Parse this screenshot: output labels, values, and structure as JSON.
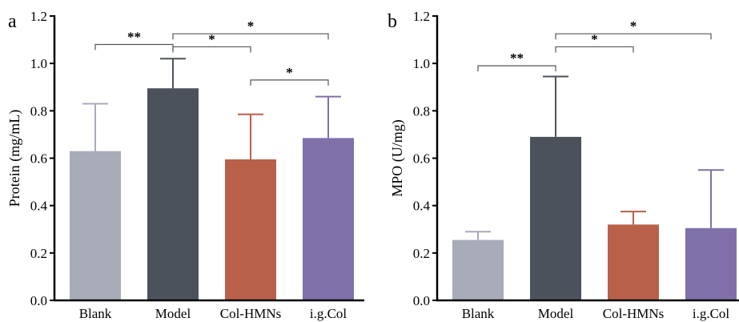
{
  "chart_data": [
    {
      "type": "bar",
      "panel_label": "a",
      "categories": [
        "Blank",
        "Model",
        "Col-HMNs",
        "i.g.Col"
      ],
      "values": [
        0.63,
        0.895,
        0.595,
        0.685
      ],
      "errors": [
        0.2,
        0.125,
        0.19,
        0.175
      ],
      "colors": [
        "#a8acb9",
        "#4c525c",
        "#b9604a",
        "#8070a9"
      ],
      "ylabel": "Protein (mg/mL)",
      "ylim": [
        0,
        1.2
      ],
      "yticks": [
        "0.0",
        "0.2",
        "0.4",
        "0.6",
        "0.8",
        "1.0",
        "1.2"
      ],
      "grid": false,
      "significance": [
        {
          "from": 0,
          "to": 1,
          "y": 1.08,
          "label": "**"
        },
        {
          "from": 1,
          "to": 2,
          "y": 1.07,
          "label": "*"
        },
        {
          "from": 1,
          "to": 3,
          "y": 1.125,
          "label": "*"
        },
        {
          "from": 2,
          "to": 3,
          "y": 0.93,
          "label": "*"
        }
      ]
    },
    {
      "type": "bar",
      "panel_label": "b",
      "categories": [
        "Blank",
        "Model",
        "Col-HMNs",
        "i.g.Col"
      ],
      "values": [
        0.255,
        0.69,
        0.32,
        0.305
      ],
      "errors": [
        0.035,
        0.255,
        0.055,
        0.245
      ],
      "colors": [
        "#a8acb9",
        "#4c525c",
        "#b9604a",
        "#8070a9"
      ],
      "ylabel": "MPO (U/mg)",
      "ylim": [
        0,
        1.2
      ],
      "yticks": [
        "0.0",
        "0.2",
        "0.4",
        "0.6",
        "0.8",
        "1.0",
        "1.2"
      ],
      "grid": false,
      "significance": [
        {
          "from": 0,
          "to": 1,
          "y": 0.99,
          "label": "**"
        },
        {
          "from": 1,
          "to": 2,
          "y": 1.07,
          "label": "*"
        },
        {
          "from": 1,
          "to": 3,
          "y": 1.125,
          "label": "*"
        }
      ]
    }
  ]
}
